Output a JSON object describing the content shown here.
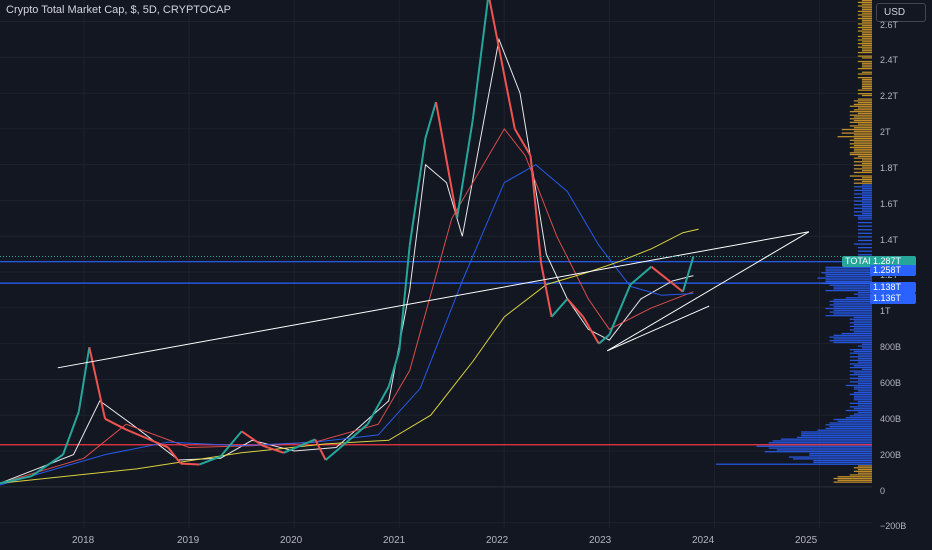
{
  "header": {
    "title": "Crypto Total Market Cap, $, 5D, CRYPTOCAP",
    "currency": "USD"
  },
  "chart_data": {
    "type": "line",
    "title": "Crypto Total Market Cap, $, 5D, CRYPTOCAP",
    "xlabel": "",
    "ylabel": "",
    "x_ticks": [
      "2018",
      "2019",
      "2020",
      "2021",
      "2022",
      "2023",
      "2024",
      "2025"
    ],
    "y_ticks": [
      "2.6T",
      "2.4T",
      "2.2T",
      "2T",
      "1.8T",
      "1.6T",
      "1.4T",
      "1.2T",
      "1T",
      "800B",
      "600B",
      "400B",
      "200B",
      "0",
      "−200B"
    ],
    "y_tick_values": [
      2600,
      2400,
      2200,
      2000,
      1800,
      1600,
      1400,
      1200,
      1000,
      800,
      600,
      400,
      200,
      0,
      -200
    ],
    "x_range": [
      2017.2,
      2025.5
    ],
    "y_range_billions": [
      -230,
      2720
    ],
    "series": [
      {
        "name": "TOTAL",
        "color": "#26a69a",
        "x": [
          2017.2,
          2017.5,
          2017.8,
          2017.95,
          2018.05,
          2018.2,
          2018.4,
          2018.6,
          2018.8,
          2018.92,
          2019.1,
          2019.3,
          2019.5,
          2019.7,
          2019.9,
          2020.2,
          2020.3,
          2020.5,
          2020.7,
          2020.9,
          2021.0,
          2021.1,
          2021.25,
          2021.35,
          2021.55,
          2021.7,
          2021.85,
          2021.95,
          2022.1,
          2022.25,
          2022.35,
          2022.45,
          2022.6,
          2022.75,
          2022.9,
          2023.0,
          2023.2,
          2023.4,
          2023.55,
          2023.7,
          2023.8
        ],
        "values": [
          20,
          60,
          180,
          420,
          780,
          380,
          320,
          270,
          220,
          130,
          125,
          170,
          310,
          230,
          190,
          265,
          150,
          250,
          350,
          560,
          760,
          1350,
          1950,
          2150,
          1500,
          2050,
          2750,
          2450,
          2000,
          1850,
          1250,
          950,
          1050,
          950,
          800,
          850,
          1130,
          1230,
          1160,
          1090,
          1287
        ]
      }
    ],
    "moving_averages": [
      {
        "color": "#ffffff",
        "x": [
          2017.2,
          2017.9,
          2018.15,
          2018.5,
          2018.9,
          2019.3,
          2019.6,
          2020.0,
          2020.4,
          2020.9,
          2021.1,
          2021.25,
          2021.45,
          2021.6,
          2021.95,
          2022.15,
          2022.4,
          2022.6,
          2022.8,
          2023.0,
          2023.3,
          2023.6,
          2023.8
        ],
        "values": [
          20,
          180,
          480,
          330,
          150,
          160,
          260,
          200,
          220,
          480,
          1100,
          1800,
          1700,
          1400,
          2500,
          2200,
          1300,
          1050,
          880,
          820,
          1050,
          1150,
          1180
        ]
      },
      {
        "color": "#ef5350",
        "x": [
          2017.2,
          2018.0,
          2018.4,
          2019.0,
          2019.6,
          2020.2,
          2020.8,
          2021.1,
          2021.5,
          2022.0,
          2022.2,
          2022.5,
          2022.8,
          2023.0,
          2023.4,
          2023.8
        ],
        "values": [
          20,
          160,
          350,
          220,
          230,
          250,
          350,
          650,
          1500,
          2000,
          1850,
          1400,
          1050,
          880,
          1000,
          1090
        ]
      },
      {
        "color": "#2962ff",
        "x": [
          2017.2,
          2018.2,
          2018.8,
          2019.5,
          2020.2,
          2020.8,
          2021.2,
          2021.6,
          2022.0,
          2022.3,
          2022.6,
          2022.9,
          2023.2,
          2023.5,
          2023.8
        ],
        "values": [
          10,
          180,
          250,
          230,
          250,
          290,
          550,
          1150,
          1700,
          1800,
          1650,
          1350,
          1120,
          1070,
          1080
        ]
      },
      {
        "color": "#f0e442",
        "x": [
          2017.2,
          2018.5,
          2019.5,
          2020.3,
          2020.9,
          2021.3,
          2021.7,
          2022.0,
          2022.4,
          2022.8,
          2023.1,
          2023.4,
          2023.7,
          2023.85
        ],
        "values": [
          20,
          100,
          190,
          240,
          260,
          400,
          700,
          950,
          1130,
          1200,
          1260,
          1330,
          1420,
          1440
        ]
      }
    ],
    "trendlines": [
      {
        "color": "#ffffff",
        "x": [
          2017.75,
          2024.9
        ],
        "values": [
          665,
          1425
        ]
      },
      {
        "color": "#ffffff",
        "x": [
          2022.98,
          2024.9
        ],
        "values": [
          760,
          1425
        ]
      },
      {
        "color": "#ffffff",
        "x": [
          2022.98,
          2023.95
        ],
        "values": [
          760,
          1010
        ]
      }
    ],
    "horizontal_levels": [
      {
        "value": 1258,
        "color": "#2962ff"
      },
      {
        "value": 1138,
        "color": "#2962ff"
      },
      {
        "value": 235,
        "color": "#f23645"
      }
    ],
    "price_tags": [
      {
        "label": "TOTAL",
        "value_label": "1.287T",
        "value": 1287,
        "color": "#26a69a"
      },
      {
        "label": "",
        "value_label": "1.258T",
        "value": 1258,
        "color": "#2962ff"
      },
      {
        "label": "",
        "value_label": "1.138T",
        "value": 1138,
        "color": "#2962ff"
      },
      {
        "label": "",
        "value_label": "1.136T",
        "value": 1136,
        "color": "#2962ff"
      }
    ],
    "volume_profile": {
      "value_area_range_billions": [
        120,
        1680
      ],
      "colors": {
        "value_area": "#2962ff",
        "outside": "#e0a32a"
      }
    },
    "grid": true
  }
}
